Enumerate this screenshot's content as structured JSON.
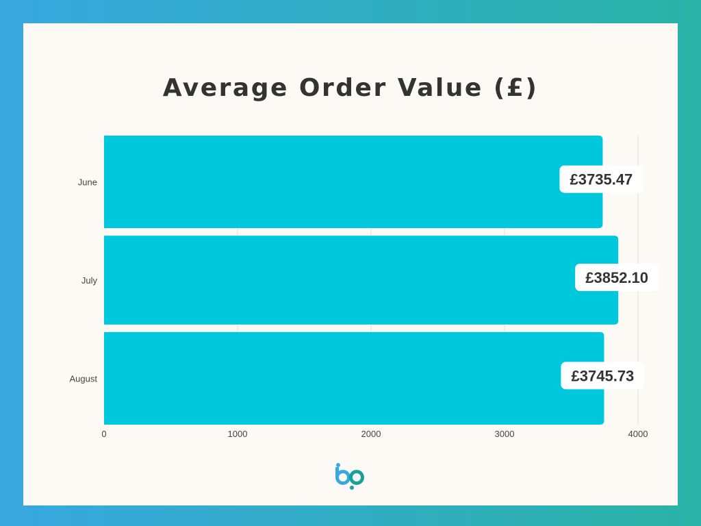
{
  "chart_data": {
    "type": "bar",
    "orientation": "horizontal",
    "title": "Average Order Value (£)",
    "xlabel": "",
    "ylabel": "",
    "categories": [
      "June",
      "July",
      "August"
    ],
    "values": [
      3735.47,
      3852.1,
      3745.73
    ],
    "value_labels": [
      "£3735.47",
      "£3852.10",
      "£3745.73"
    ],
    "xlim": [
      0,
      4000
    ],
    "xticks": [
      0,
      1000,
      2000,
      3000,
      4000
    ],
    "grid": "vertical",
    "legend": "none",
    "bar_color": "#00c8dc"
  },
  "colors": {
    "background_left": "#38a8e0",
    "background_right": "#2ab3a6",
    "card": "#fdfaf5",
    "title": "#333333",
    "logo_blue": "#38a8e0",
    "logo_teal": "#14a39a"
  },
  "logo": {
    "icon": "bp-logo-icon"
  }
}
